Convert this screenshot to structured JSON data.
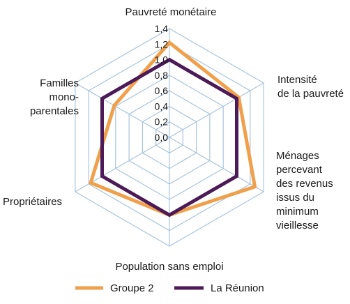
{
  "chart_data": {
    "type": "radar",
    "axes": [
      [
        "Pauvreté monétaire"
      ],
      [
        "Intensité",
        "de la pauvreté"
      ],
      [
        "Ménages",
        "percevant",
        "des revenus",
        "issus du",
        "minimum",
        "vieillesse"
      ],
      [
        "Population sans emploi"
      ],
      [
        "Propriétaires"
      ],
      [
        "Familles",
        "mono-",
        "parentales"
      ]
    ],
    "rlim": [
      0,
      1.4
    ],
    "ticks": [
      "0,0",
      "0,2",
      "0,4",
      "0,6",
      "0,8",
      "1,0",
      "1,2",
      "1,4"
    ],
    "tick_values": [
      0,
      0.2,
      0.4,
      0.6,
      0.8,
      1.0,
      1.2,
      1.4
    ],
    "grid": true,
    "grid_color": "#a9c4dc",
    "series": [
      {
        "name": "Groupe 2",
        "color": "#f0a04b",
        "values": [
          1.22,
          1.03,
          1.27,
          1.0,
          1.17,
          0.82
        ]
      },
      {
        "name": "La Réunion",
        "color": "#4c1a57",
        "values": [
          1.0,
          1.0,
          1.0,
          1.0,
          1.0,
          1.0
        ]
      }
    ],
    "legend": "bottom"
  }
}
